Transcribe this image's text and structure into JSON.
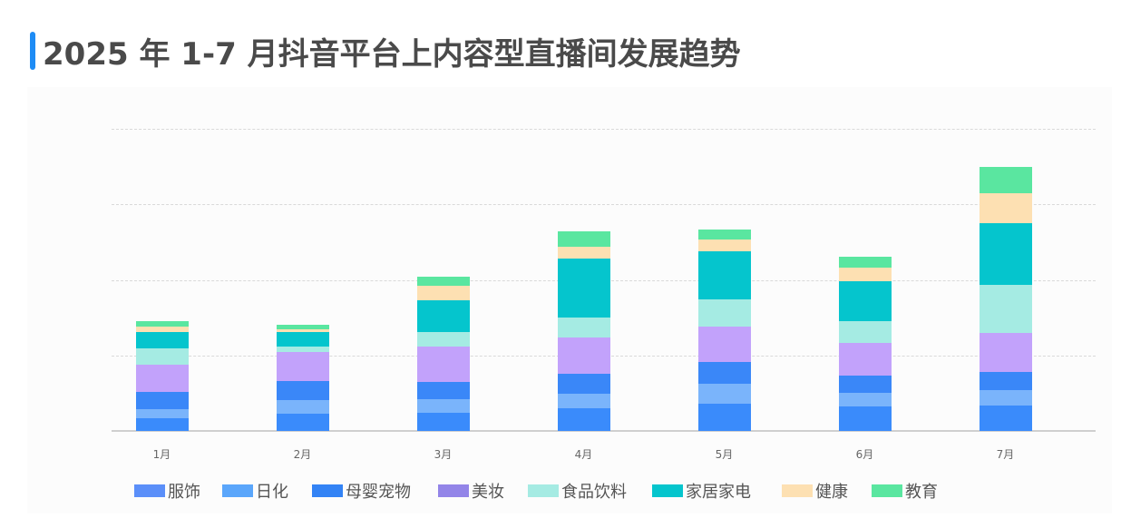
{
  "title": "2025 年 1-7 月抖音平台上内容型直播间发展趋势",
  "accent_color": "#1e8cf5",
  "chart_data": {
    "type": "bar",
    "stacked": true,
    "title": "2025 年 1-7 月抖音平台上内容型直播间发展趋势",
    "xlabel": "",
    "ylabel": "",
    "y_tick_labels_shown": false,
    "grid": true,
    "grid_style": "dashed",
    "legend_position": "bottom",
    "ylim": [
      0,
      333
    ],
    "grid_step": 83.25,
    "categories": [
      "1月",
      "2月",
      "3月",
      "4月",
      "5月",
      "6月",
      "7月"
    ],
    "series": [
      {
        "name": "服饰",
        "color": "#3a8bfb",
        "legend_color": "#5b8ff9",
        "values": [
          14,
          19,
          20,
          25,
          30,
          27,
          28
        ]
      },
      {
        "name": "日化",
        "color": "#7ab4fb",
        "legend_color": "#5aa6fb",
        "values": [
          10,
          15,
          15,
          16,
          22,
          15,
          17
        ]
      },
      {
        "name": "母婴宠物",
        "color": "#3a87f8",
        "legend_color": "#3383f5",
        "values": [
          19,
          21,
          19,
          22,
          24,
          19,
          20
        ]
      },
      {
        "name": "美妆",
        "color": "#c2a2fb",
        "legend_color": "#9385e8",
        "values": [
          30,
          32,
          39,
          40,
          39,
          36,
          43
        ]
      },
      {
        "name": "食品饮料",
        "color": "#a5ebe3",
        "legend_color": "#a5ebe3",
        "values": [
          18,
          6,
          16,
          22,
          30,
          24,
          53
        ]
      },
      {
        "name": "家居家电",
        "color": "#05c5cd",
        "legend_color": "#05c5cd",
        "values": [
          18,
          16,
          35,
          65,
          53,
          44,
          68
        ]
      },
      {
        "name": "健康",
        "color": "#fde0b2",
        "legend_color": "#fde0b2",
        "values": [
          6,
          3,
          16,
          13,
          13,
          15,
          33
        ]
      },
      {
        "name": "教育",
        "color": "#5ae6a0",
        "legend_color": "#5ae6a0",
        "values": [
          6,
          5,
          10,
          17,
          11,
          12,
          29
        ]
      }
    ]
  },
  "legend": [
    {
      "label": "服饰",
      "color": "#5b8ff9"
    },
    {
      "label": "日化",
      "color": "#5aa6fb"
    },
    {
      "label": "母婴宠物",
      "color": "#3383f5"
    },
    {
      "label": "美妆",
      "color": "#9385e8"
    },
    {
      "label": "食品饮料",
      "color": "#a5ebe3"
    },
    {
      "label": "家居家电",
      "color": "#05c5cd"
    },
    {
      "label": "健康",
      "color": "#fde0b2"
    },
    {
      "label": "教育",
      "color": "#5ae6a0"
    }
  ]
}
